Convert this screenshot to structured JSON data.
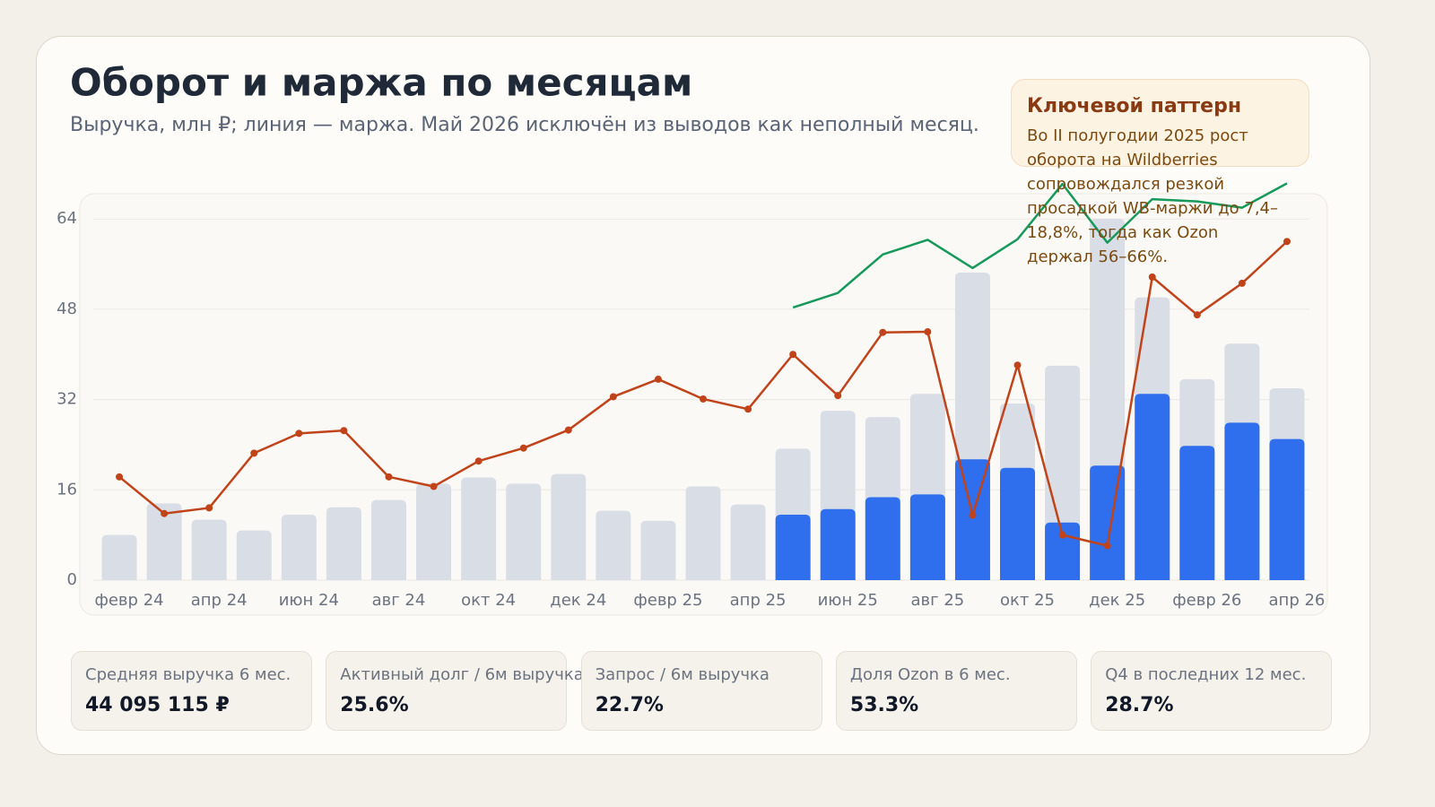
{
  "chart_data": {
    "type": "bar",
    "title": "Оборот и маржа по месяцам",
    "subtitle": "Выручка, млн ₽; линия — маржа. Май 2026 исключён из выводов как неполный месяц.",
    "categories": [
      "февр 24",
      null,
      "апр 24",
      null,
      "июн 24",
      null,
      "авг 24",
      null,
      "окт 24",
      null,
      "дек 24",
      null,
      "февр 25",
      null,
      "апр 25",
      null,
      "июн 25",
      null,
      "авг 25",
      null,
      "окт 25",
      null,
      "дек 25",
      null,
      "февр 26",
      null,
      "апр 26"
    ],
    "ylim": [
      0,
      68
    ],
    "yticks": [
      0,
      16,
      32,
      48,
      64
    ],
    "grid": true,
    "series": [
      {
        "type": "bar",
        "color": "#d9dde6",
        "values": [
          8.0,
          13.6,
          10.7,
          8.8,
          11.6,
          12.9,
          14.2,
          17.1,
          18.2,
          17.1,
          18.8,
          12.3,
          10.5,
          16.6,
          13.4,
          23.3,
          30.0,
          28.9,
          33.0,
          54.5,
          31.3,
          38.0,
          64.0,
          50.1,
          35.6,
          41.9,
          34.0
        ]
      },
      {
        "type": "bar",
        "color": "#2f6fed",
        "values": [
          null,
          null,
          null,
          null,
          null,
          null,
          null,
          null,
          null,
          null,
          null,
          null,
          null,
          null,
          null,
          11.6,
          12.6,
          14.7,
          15.2,
          21.4,
          19.9,
          10.2,
          20.3,
          33.0,
          23.8,
          27.9,
          25.0
        ]
      },
      {
        "type": "line",
        "color": "#16995a",
        "values": [
          null,
          null,
          null,
          null,
          null,
          null,
          null,
          null,
          null,
          null,
          null,
          null,
          null,
          null,
          null,
          48.3,
          50.9,
          57.7,
          60.3,
          55.3,
          60.4,
          70.2,
          59.8,
          67.5,
          67.1,
          66.0,
          70.3
        ]
      },
      {
        "type": "line",
        "color": "#c0431a",
        "markers": true,
        "values": [
          18.3,
          11.8,
          12.8,
          22.5,
          26.0,
          26.5,
          18.3,
          16.6,
          21.1,
          23.4,
          26.6,
          32.5,
          35.6,
          32.1,
          30.3,
          40.0,
          32.7,
          43.9,
          44.0,
          11.5,
          38.1,
          8.0,
          6.1,
          53.7,
          47.0,
          52.6,
          60.0
        ]
      }
    ]
  },
  "callout": {
    "title": "Ключевой паттерн",
    "text": "Во II полугодии 2025 рост оборота на Wildberries сопровождался резкой просадкой WB-маржи до 7,4–18,8%, тогда как Ozon держал 56–66%."
  },
  "kpis": [
    {
      "label": "Средняя выручка 6 мес.",
      "value": "44 095 115 ₽"
    },
    {
      "label": "Активный долг / 6м выручка",
      "value": "25.6%"
    },
    {
      "label": "Запрос / 6м выручка",
      "value": "22.7%"
    },
    {
      "label": "Доля Ozon в 6 мес.",
      "value": "53.3%"
    },
    {
      "label": "Q4 в последних 12 мес.",
      "value": "28.7%"
    }
  ]
}
